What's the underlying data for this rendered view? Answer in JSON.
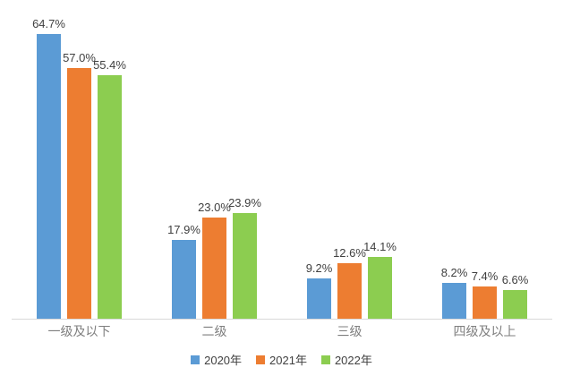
{
  "chart_data": {
    "type": "bar",
    "categories": [
      "一级及以下",
      "二级",
      "三级",
      "四级及以上"
    ],
    "series": [
      {
        "name": "2020年",
        "color": "#5B9BD5",
        "values": [
          64.7,
          17.9,
          9.2,
          8.2
        ]
      },
      {
        "name": "2021年",
        "color": "#ED7D31",
        "values": [
          57.0,
          23.0,
          12.6,
          7.4
        ]
      },
      {
        "name": "2022年",
        "color": "#8CCD50",
        "values": [
          55.4,
          23.9,
          14.1,
          6.6
        ]
      }
    ],
    "value_labels": [
      [
        "64.7%",
        "17.9%",
        "9.2%",
        "8.2%"
      ],
      [
        "57.0%",
        "23.0%",
        "12.6%",
        "7.4%"
      ],
      [
        "55.4%",
        "23.9%",
        "14.1%",
        "6.6%"
      ]
    ],
    "title": "",
    "xlabel": "",
    "ylabel": "",
    "ylim": [
      0,
      72.4
    ],
    "grid": false,
    "y_axis_visible": false,
    "legend_position": "bottom",
    "axis_line_color": "#D9D9D9",
    "value_label_color": "#404040",
    "category_label_color": "#7F7F7F"
  }
}
